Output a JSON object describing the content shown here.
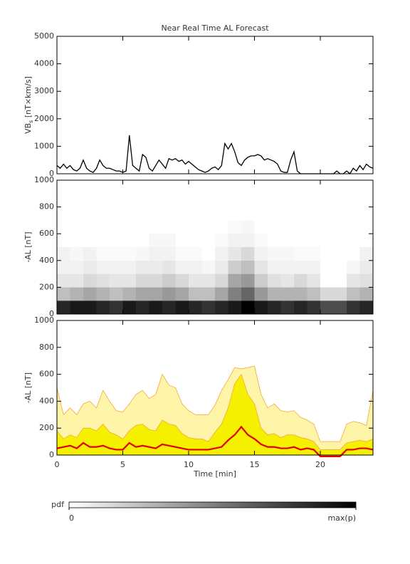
{
  "chart_data": [
    {
      "type": "line",
      "title": "Near Real Time AL Forecast",
      "ylabel": {
        "main": "VB",
        "sub": "s",
        "unit": " [nT×km/s]"
      },
      "xlim": [
        0,
        24
      ],
      "xticks": [
        0,
        5,
        10,
        15,
        20
      ],
      "show_xtick_labels": false,
      "ylim": [
        0,
        5000
      ],
      "yticks": [
        0,
        1000,
        2000,
        3000,
        4000,
        5000
      ],
      "color": "#000000",
      "x": [
        0,
        0.25,
        0.5,
        0.75,
        1,
        1.25,
        1.5,
        1.75,
        2,
        2.25,
        2.5,
        2.75,
        3,
        3.25,
        3.5,
        3.75,
        4,
        4.25,
        4.5,
        4.75,
        5,
        5.25,
        5.5,
        5.75,
        6,
        6.25,
        6.5,
        6.75,
        7,
        7.25,
        7.5,
        7.75,
        8,
        8.25,
        8.5,
        8.75,
        9,
        9.25,
        9.5,
        9.75,
        10,
        10.25,
        10.5,
        10.75,
        11,
        11.25,
        11.5,
        11.75,
        12,
        12.25,
        12.5,
        12.75,
        13,
        13.25,
        13.5,
        13.75,
        14,
        14.25,
        14.5,
        14.75,
        15,
        15.25,
        15.5,
        15.75,
        16,
        16.25,
        16.5,
        16.75,
        17,
        17.25,
        17.5,
        17.75,
        18,
        18.25,
        18.5,
        18.75,
        19,
        19.25,
        19.5,
        19.75,
        20,
        20.25,
        20.5,
        20.75,
        21,
        21.25,
        21.5,
        21.75,
        22,
        22.25,
        22.5,
        22.75,
        23,
        23.25,
        23.5,
        23.75,
        24
      ],
      "values": [
        300,
        200,
        350,
        200,
        300,
        150,
        100,
        200,
        500,
        200,
        100,
        50,
        200,
        500,
        300,
        200,
        200,
        150,
        100,
        100,
        50,
        100,
        1400,
        300,
        200,
        100,
        700,
        600,
        200,
        100,
        300,
        500,
        350,
        200,
        550,
        500,
        550,
        450,
        500,
        350,
        450,
        350,
        250,
        150,
        100,
        50,
        100,
        200,
        250,
        150,
        300,
        1100,
        900,
        1100,
        800,
        400,
        300,
        500,
        600,
        650,
        650,
        700,
        650,
        500,
        550,
        500,
        450,
        350,
        100,
        50,
        50,
        500,
        800,
        100,
        0,
        0,
        0,
        0,
        0,
        0,
        0,
        0,
        0,
        0,
        0,
        100,
        0,
        0,
        100,
        0,
        200,
        100,
        300,
        150,
        350,
        250,
        200
      ]
    },
    {
      "type": "heatmap",
      "ylabel": "-AL [nT]",
      "xlim": [
        0,
        24
      ],
      "xticks": [
        0,
        5,
        10,
        15,
        20
      ],
      "show_xtick_labels": false,
      "ylim": [
        0,
        1000
      ],
      "yticks": [
        0,
        200,
        400,
        600,
        800,
        1000
      ],
      "pdf": {
        "xbins": [
          0,
          1,
          2,
          3,
          4,
          5,
          6,
          7,
          8,
          9,
          10,
          11,
          12,
          13,
          14,
          15,
          16,
          17,
          18,
          19,
          20,
          21,
          22,
          23,
          24
        ],
        "ybins": [
          0,
          100,
          200,
          300,
          400,
          500,
          600,
          700
        ],
        "values": [
          [
            0.85,
            0.25,
            0.1,
            0.05,
            0.05,
            0,
            0
          ],
          [
            0.9,
            0.3,
            0.1,
            0.05,
            0.03,
            0,
            0
          ],
          [
            0.9,
            0.35,
            0.15,
            0.08,
            0.05,
            0,
            0
          ],
          [
            0.85,
            0.3,
            0.12,
            0.05,
            0.02,
            0,
            0
          ],
          [
            0.8,
            0.25,
            0.1,
            0.05,
            0.02,
            0,
            0
          ],
          [
            0.9,
            0.3,
            0.1,
            0.05,
            0.02,
            0,
            0
          ],
          [
            0.85,
            0.35,
            0.15,
            0.08,
            0.03,
            0,
            0
          ],
          [
            0.9,
            0.35,
            0.15,
            0.08,
            0.05,
            0.03,
            0
          ],
          [
            0.85,
            0.4,
            0.2,
            0.1,
            0.05,
            0.03,
            0
          ],
          [
            0.9,
            0.35,
            0.15,
            0.05,
            0.02,
            0,
            0
          ],
          [
            0.85,
            0.25,
            0.1,
            0.05,
            0.02,
            0,
            0
          ],
          [
            0.8,
            0.25,
            0.1,
            0.03,
            0,
            0,
            0
          ],
          [
            0.85,
            0.35,
            0.15,
            0.08,
            0.05,
            0.02,
            0
          ],
          [
            0.9,
            0.5,
            0.35,
            0.2,
            0.1,
            0.05,
            0.02
          ],
          [
            1,
            0.6,
            0.4,
            0.25,
            0.15,
            0.05,
            0.03
          ],
          [
            0.9,
            0.4,
            0.2,
            0.1,
            0.05,
            0.02,
            0
          ],
          [
            0.85,
            0.3,
            0.12,
            0.05,
            0.03,
            0,
            0
          ],
          [
            0.8,
            0.3,
            0.1,
            0.05,
            0.03,
            0,
            0
          ],
          [
            0.85,
            0.3,
            0.15,
            0.05,
            0.02,
            0,
            0
          ],
          [
            0.8,
            0.25,
            0.1,
            0.05,
            0.02,
            0,
            0
          ],
          [
            0.7,
            0.15,
            0,
            0,
            0,
            0,
            0
          ],
          [
            0.7,
            0.15,
            0,
            0,
            0,
            0,
            0
          ],
          [
            0.8,
            0.25,
            0.1,
            0.03,
            0,
            0,
            0
          ],
          [
            0.85,
            0.3,
            0.12,
            0.08,
            0.05,
            0,
            0
          ]
        ]
      }
    },
    {
      "type": "area",
      "ylabel": "-AL [nT]",
      "xlabel": "Time [min]",
      "xlim": [
        0,
        24
      ],
      "xticks": [
        0,
        5,
        10,
        15,
        20
      ],
      "show_xtick_labels": true,
      "ylim": [
        0,
        1000
      ],
      "yticks": [
        0,
        200,
        400,
        600,
        800,
        1000
      ],
      "x": [
        0,
        0.5,
        1,
        1.5,
        2,
        2.5,
        3,
        3.5,
        4,
        4.5,
        5,
        5.5,
        6,
        6.5,
        7,
        7.5,
        8,
        8.5,
        9,
        9.5,
        10,
        10.5,
        11,
        11.5,
        12,
        12.5,
        13,
        13.5,
        14,
        14.5,
        15,
        15.5,
        16,
        16.5,
        17,
        17.5,
        18,
        18.5,
        19,
        19.5,
        20,
        20.5,
        21,
        21.5,
        22,
        22.5,
        23,
        23.5,
        24
      ],
      "series": [
        {
          "color": "#fff5a8",
          "edge": "#f4a640",
          "fill": true,
          "values": [
            500,
            300,
            350,
            300,
            380,
            400,
            350,
            480,
            400,
            330,
            320,
            380,
            450,
            480,
            420,
            450,
            600,
            520,
            500,
            380,
            330,
            300,
            300,
            300,
            370,
            480,
            560,
            650,
            640,
            650,
            660,
            450,
            350,
            380,
            330,
            320,
            330,
            280,
            260,
            230,
            100,
            100,
            100,
            100,
            230,
            250,
            240,
            220,
            480
          ]
        },
        {
          "color": "#f5f000",
          "edge": "#f4a640",
          "fill": true,
          "values": [
            180,
            120,
            150,
            130,
            200,
            200,
            180,
            230,
            170,
            150,
            120,
            180,
            220,
            230,
            190,
            180,
            260,
            230,
            220,
            160,
            130,
            120,
            120,
            100,
            170,
            230,
            350,
            530,
            600,
            450,
            380,
            200,
            150,
            160,
            130,
            150,
            150,
            130,
            120,
            100,
            40,
            40,
            40,
            40,
            90,
            100,
            110,
            100,
            120
          ]
        },
        {
          "color": "#e00000",
          "fill": false,
          "values": [
            50,
            60,
            70,
            50,
            90,
            60,
            60,
            70,
            50,
            40,
            40,
            90,
            60,
            70,
            60,
            50,
            80,
            70,
            60,
            50,
            40,
            40,
            40,
            40,
            50,
            60,
            110,
            150,
            210,
            150,
            120,
            80,
            60,
            60,
            50,
            50,
            60,
            40,
            50,
            40,
            -10,
            -10,
            -10,
            -10,
            40,
            40,
            50,
            50,
            40
          ]
        }
      ]
    },
    {
      "type": "colorbar",
      "label": "pdf",
      "ticks": [
        0,
        {
          "value": 1,
          "label": "max(p)"
        }
      ]
    }
  ]
}
